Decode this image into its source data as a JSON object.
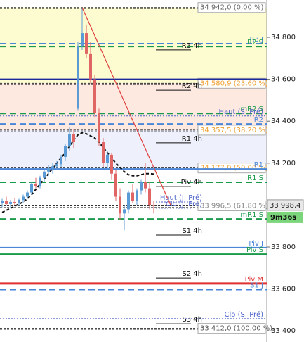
{
  "chart_data": {
    "type": "candlestick",
    "ylim": [
      33347,
      34978
    ],
    "yticks": [
      {
        "value": 34800,
        "label": "34 800"
      },
      {
        "value": 34600,
        "label": "34 600"
      },
      {
        "value": 34400,
        "label": "34 400"
      },
      {
        "value": 34200,
        "label": "34 200"
      },
      {
        "value": 33800,
        "label": "33 800"
      },
      {
        "value": 33600,
        "label": "33 600"
      },
      {
        "value": 33400,
        "label": "33 400"
      }
    ],
    "up_color": "#5b9bd5",
    "down_color": "#e06666",
    "open": [
      34010,
      34020,
      34005,
      34015,
      34010,
      34025,
      34040,
      34060,
      34100,
      34090,
      34130,
      34160,
      34175,
      34185,
      34195,
      34230,
      34280,
      34340,
      34460,
      34760,
      34820,
      34720,
      34600,
      34440,
      34300,
      34200,
      34240,
      34150,
      34040,
      33960,
      33980,
      34060,
      34020,
      34070,
      34110,
      34080,
      34000
    ],
    "high": [
      34030,
      34040,
      34025,
      34035,
      34030,
      34050,
      34070,
      34110,
      34130,
      34140,
      34170,
      34190,
      34200,
      34210,
      34240,
      34290,
      34370,
      34360,
      34780,
      34942,
      34860,
      34780,
      34620,
      34460,
      34320,
      34260,
      34250,
      34170,
      34080,
      34000,
      34070,
      34100,
      34080,
      34120,
      34200,
      34110,
      34020
    ],
    "low": [
      33990,
      34000,
      33985,
      34000,
      33995,
      34010,
      34030,
      34050,
      34080,
      34080,
      34110,
      34140,
      34150,
      34170,
      34180,
      34210,
      34260,
      34270,
      34450,
      34740,
      34700,
      34580,
      34420,
      34280,
      34180,
      34170,
      34120,
      34020,
      33930,
      33880,
      33960,
      34010,
      34000,
      34050,
      34060,
      33980,
      33960
    ],
    "close": [
      34020,
      34005,
      34015,
      34010,
      34025,
      34040,
      34060,
      34100,
      34090,
      34130,
      34160,
      34175,
      34185,
      34195,
      34230,
      34280,
      34340,
      34300,
      34760,
      34820,
      34720,
      34600,
      34440,
      34300,
      34200,
      34240,
      34150,
      34040,
      33960,
      33980,
      34060,
      34020,
      34070,
      34110,
      34080,
      34000,
      33998.4
    ],
    "ma": {
      "color": "#111111",
      "values": [
        33965,
        33975,
        33985,
        33995,
        34005,
        34015,
        34030,
        34050,
        34075,
        34100,
        34125,
        34150,
        34175,
        34200,
        34225,
        34250,
        34280,
        34310,
        34335,
        34345,
        34340,
        34330,
        34320,
        34300,
        34275,
        34250,
        34225,
        34200,
        34180,
        34160,
        34145,
        34140,
        34140,
        34145,
        34150,
        34150,
        34148
      ]
    },
    "trendline": {
      "color": "#e04040",
      "x": [
        19,
        40
      ],
      "y": [
        34942,
        34000
      ]
    },
    "fib_levels": [
      {
        "value": 34942,
        "label": "34 942,0 (0,00 %)",
        "color": "#666666"
      },
      {
        "value": 34580.9,
        "label": "34 580,9 (23,60 %)",
        "color": "#f0a030"
      },
      {
        "value": 34357.5,
        "label": "34 357,5 (38,20 %)",
        "color": "#f0a030"
      },
      {
        "value": 34177,
        "label": "34 177,0 (50,00 %)",
        "color": "#f0a030"
      },
      {
        "value": 33996.5,
        "label": "33 996,5 (61,80 %)",
        "color": "#888888"
      },
      {
        "value": 33412,
        "label": "33 412,0 (100,00 %)",
        "color": "#555555"
      }
    ],
    "fib_zone_colors": [
      "#fdfbd0",
      "#fde9e0",
      "#eef0fb",
      "#ffffff",
      "#ffffff"
    ],
    "levels": [
      {
        "label": "R3 J",
        "value": 34770,
        "color": "#4a86d8",
        "style": "dashed",
        "width": 2,
        "span": "full"
      },
      {
        "label": "R2 S",
        "value": 34756,
        "color": "#1a9a4a",
        "style": "dashed",
        "width": 2,
        "span": "full"
      },
      {
        "label": "R3 4h",
        "value": 34740,
        "color": "#111111",
        "style": "solid",
        "width": 1,
        "span": "short"
      },
      {
        "value": 34600,
        "color": "#1a2a9a",
        "style": "solid",
        "width": 2,
        "span": "full"
      },
      {
        "label": "R2 4h",
        "value": 34548,
        "color": "#111111",
        "style": "solid",
        "width": 1,
        "span": "short"
      },
      {
        "label": "mR2 S",
        "value": 34437,
        "color": "#1a9a4a",
        "style": "dashed",
        "width": 2,
        "span": "full"
      },
      {
        "label": "Haut (S. Pré)",
        "value": 34425,
        "color": "#4a60c8",
        "style": "dotted",
        "width": 1,
        "span": "full"
      },
      {
        "label": "R2",
        "value": 34387,
        "color": "#4a86d8",
        "style": "dashed",
        "width": 2,
        "span": "full"
      },
      {
        "label": "R1 4h",
        "value": 34297,
        "color": "#111111",
        "style": "solid",
        "width": 1,
        "span": "short"
      },
      {
        "label": "R1",
        "value": 34172,
        "color": "#4a86d8",
        "style": "solid",
        "width": 2,
        "span": "full"
      },
      {
        "label": "R1 S",
        "value": 34109,
        "color": "#1a9a4a",
        "style": "dashed",
        "width": 2,
        "span": "full"
      },
      {
        "label": "Piv 4h",
        "value": 34089,
        "color": "#111111",
        "style": "solid",
        "width": 1,
        "span": "short"
      },
      {
        "label": "Haut (J. Pré)",
        "value": 34015,
        "color": "#4a60c8",
        "style": "dotted",
        "width": 1,
        "span": "short"
      },
      {
        "label": "Clo (J. Pré)",
        "value": 33985,
        "color": "#4a60c8",
        "style": "dotted",
        "width": 1,
        "span": "short"
      },
      {
        "label": "mR1 S",
        "value": 33934,
        "color": "#1a9a4a",
        "style": "dashed",
        "width": 2,
        "span": "full"
      },
      {
        "label": "S1 4h",
        "value": 33857,
        "color": "#111111",
        "style": "solid",
        "width": 1,
        "span": "short"
      },
      {
        "label": "Piv J",
        "value": 33797,
        "color": "#4a86d8",
        "style": "solid",
        "width": 2,
        "span": "full"
      },
      {
        "label": "Piv S",
        "value": 33766,
        "color": "#1a9a4a",
        "style": "solid",
        "width": 2,
        "span": "full"
      },
      {
        "label": "S2 4h",
        "value": 33652,
        "color": "#111111",
        "style": "solid",
        "width": 1,
        "span": "short"
      },
      {
        "label": "Piv M",
        "value": 33626,
        "color": "#e03030",
        "style": "solid",
        "width": 3,
        "span": "full"
      },
      {
        "label": "S1 J",
        "value": 33597,
        "color": "#4a86d8",
        "style": "dashed",
        "width": 2,
        "span": "full"
      },
      {
        "label": "Clo (S. Pré)",
        "value": 33458,
        "color": "#4a60c8",
        "style": "dotted",
        "width": 1,
        "span": "full"
      },
      {
        "label": "S3 4h",
        "value": 33434,
        "color": "#111111",
        "style": "solid",
        "width": 1,
        "span": "short"
      }
    ],
    "last_price": {
      "value": 33998.4,
      "label": "33 998,4"
    },
    "timer": "9m36s"
  }
}
